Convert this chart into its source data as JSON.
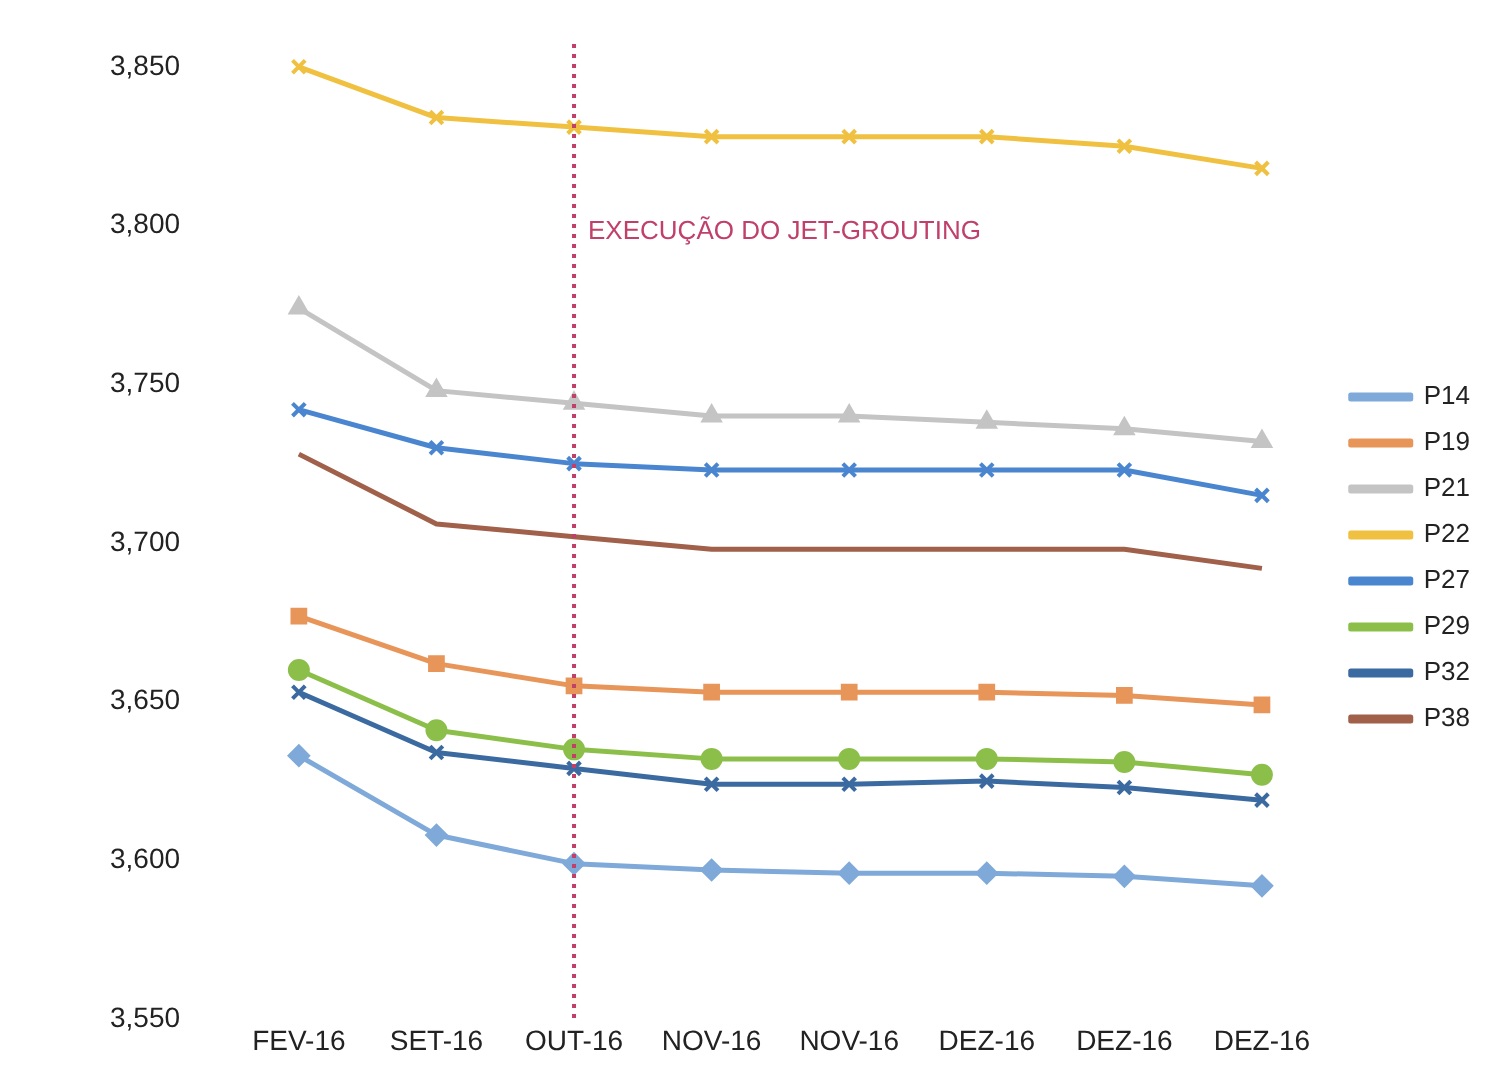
{
  "chart_data": {
    "type": "line",
    "categories": [
      "FEV-16",
      "SET-16",
      "OUT-16",
      "NOV-16",
      "NOV-16",
      "DEZ-16",
      "DEZ-16",
      "DEZ-16"
    ],
    "ylim": [
      3550,
      3850
    ],
    "yticks": [
      {
        "value": 3550,
        "label": "3,550"
      },
      {
        "value": 3600,
        "label": "3,600"
      },
      {
        "value": 3650,
        "label": "3,650"
      },
      {
        "value": 3700,
        "label": "3,700"
      },
      {
        "value": 3750,
        "label": "3,750"
      },
      {
        "value": 3800,
        "label": "3,800"
      },
      {
        "value": 3850,
        "label": "3,850"
      }
    ],
    "grid": false,
    "legend": "right",
    "ref_lines": [
      {
        "axis": "x",
        "value": "OUT-16",
        "label": "EXECUÇÃO DO JET-GROUTING",
        "color": "#c0406a",
        "line_style": "dotted"
      }
    ],
    "series": [
      {
        "name": "P14",
        "color": "#7fa9d8",
        "marker": "diamond",
        "values": [
          3633,
          3608,
          3599,
          3597,
          3596,
          3596,
          3595,
          3592
        ]
      },
      {
        "name": "P19",
        "color": "#e8955a",
        "marker": "square",
        "values": [
          3677,
          3662,
          3655,
          3653,
          3653,
          3653,
          3652,
          3649
        ]
      },
      {
        "name": "P21",
        "color": "#c4c4c4",
        "marker": "triangle",
        "values": [
          3774,
          3748,
          3744,
          3740,
          3740,
          3738,
          3736,
          3732
        ]
      },
      {
        "name": "P22",
        "color": "#f0c040",
        "marker": "cross",
        "values": [
          3850,
          3834,
          3831,
          3828,
          3828,
          3828,
          3825,
          3818
        ]
      },
      {
        "name": "P27",
        "color": "#4a86d0",
        "marker": "cross",
        "values": [
          3742,
          3730,
          3725,
          3723,
          3723,
          3723,
          3723,
          3715
        ]
      },
      {
        "name": "P29",
        "color": "#8cbf4a",
        "marker": "circle",
        "values": [
          3660,
          3641,
          3635,
          3632,
          3632,
          3632,
          3631,
          3627
        ]
      },
      {
        "name": "P32",
        "color": "#3b6aa0",
        "marker": "cross",
        "values": [
          3653,
          3634,
          3629,
          3624,
          3624,
          3625,
          3623,
          3619
        ]
      },
      {
        "name": "P38",
        "color": "#a0604a",
        "marker": "none",
        "values": [
          3728,
          3706,
          3702,
          3698,
          3698,
          3698,
          3698,
          3692
        ]
      }
    ]
  }
}
